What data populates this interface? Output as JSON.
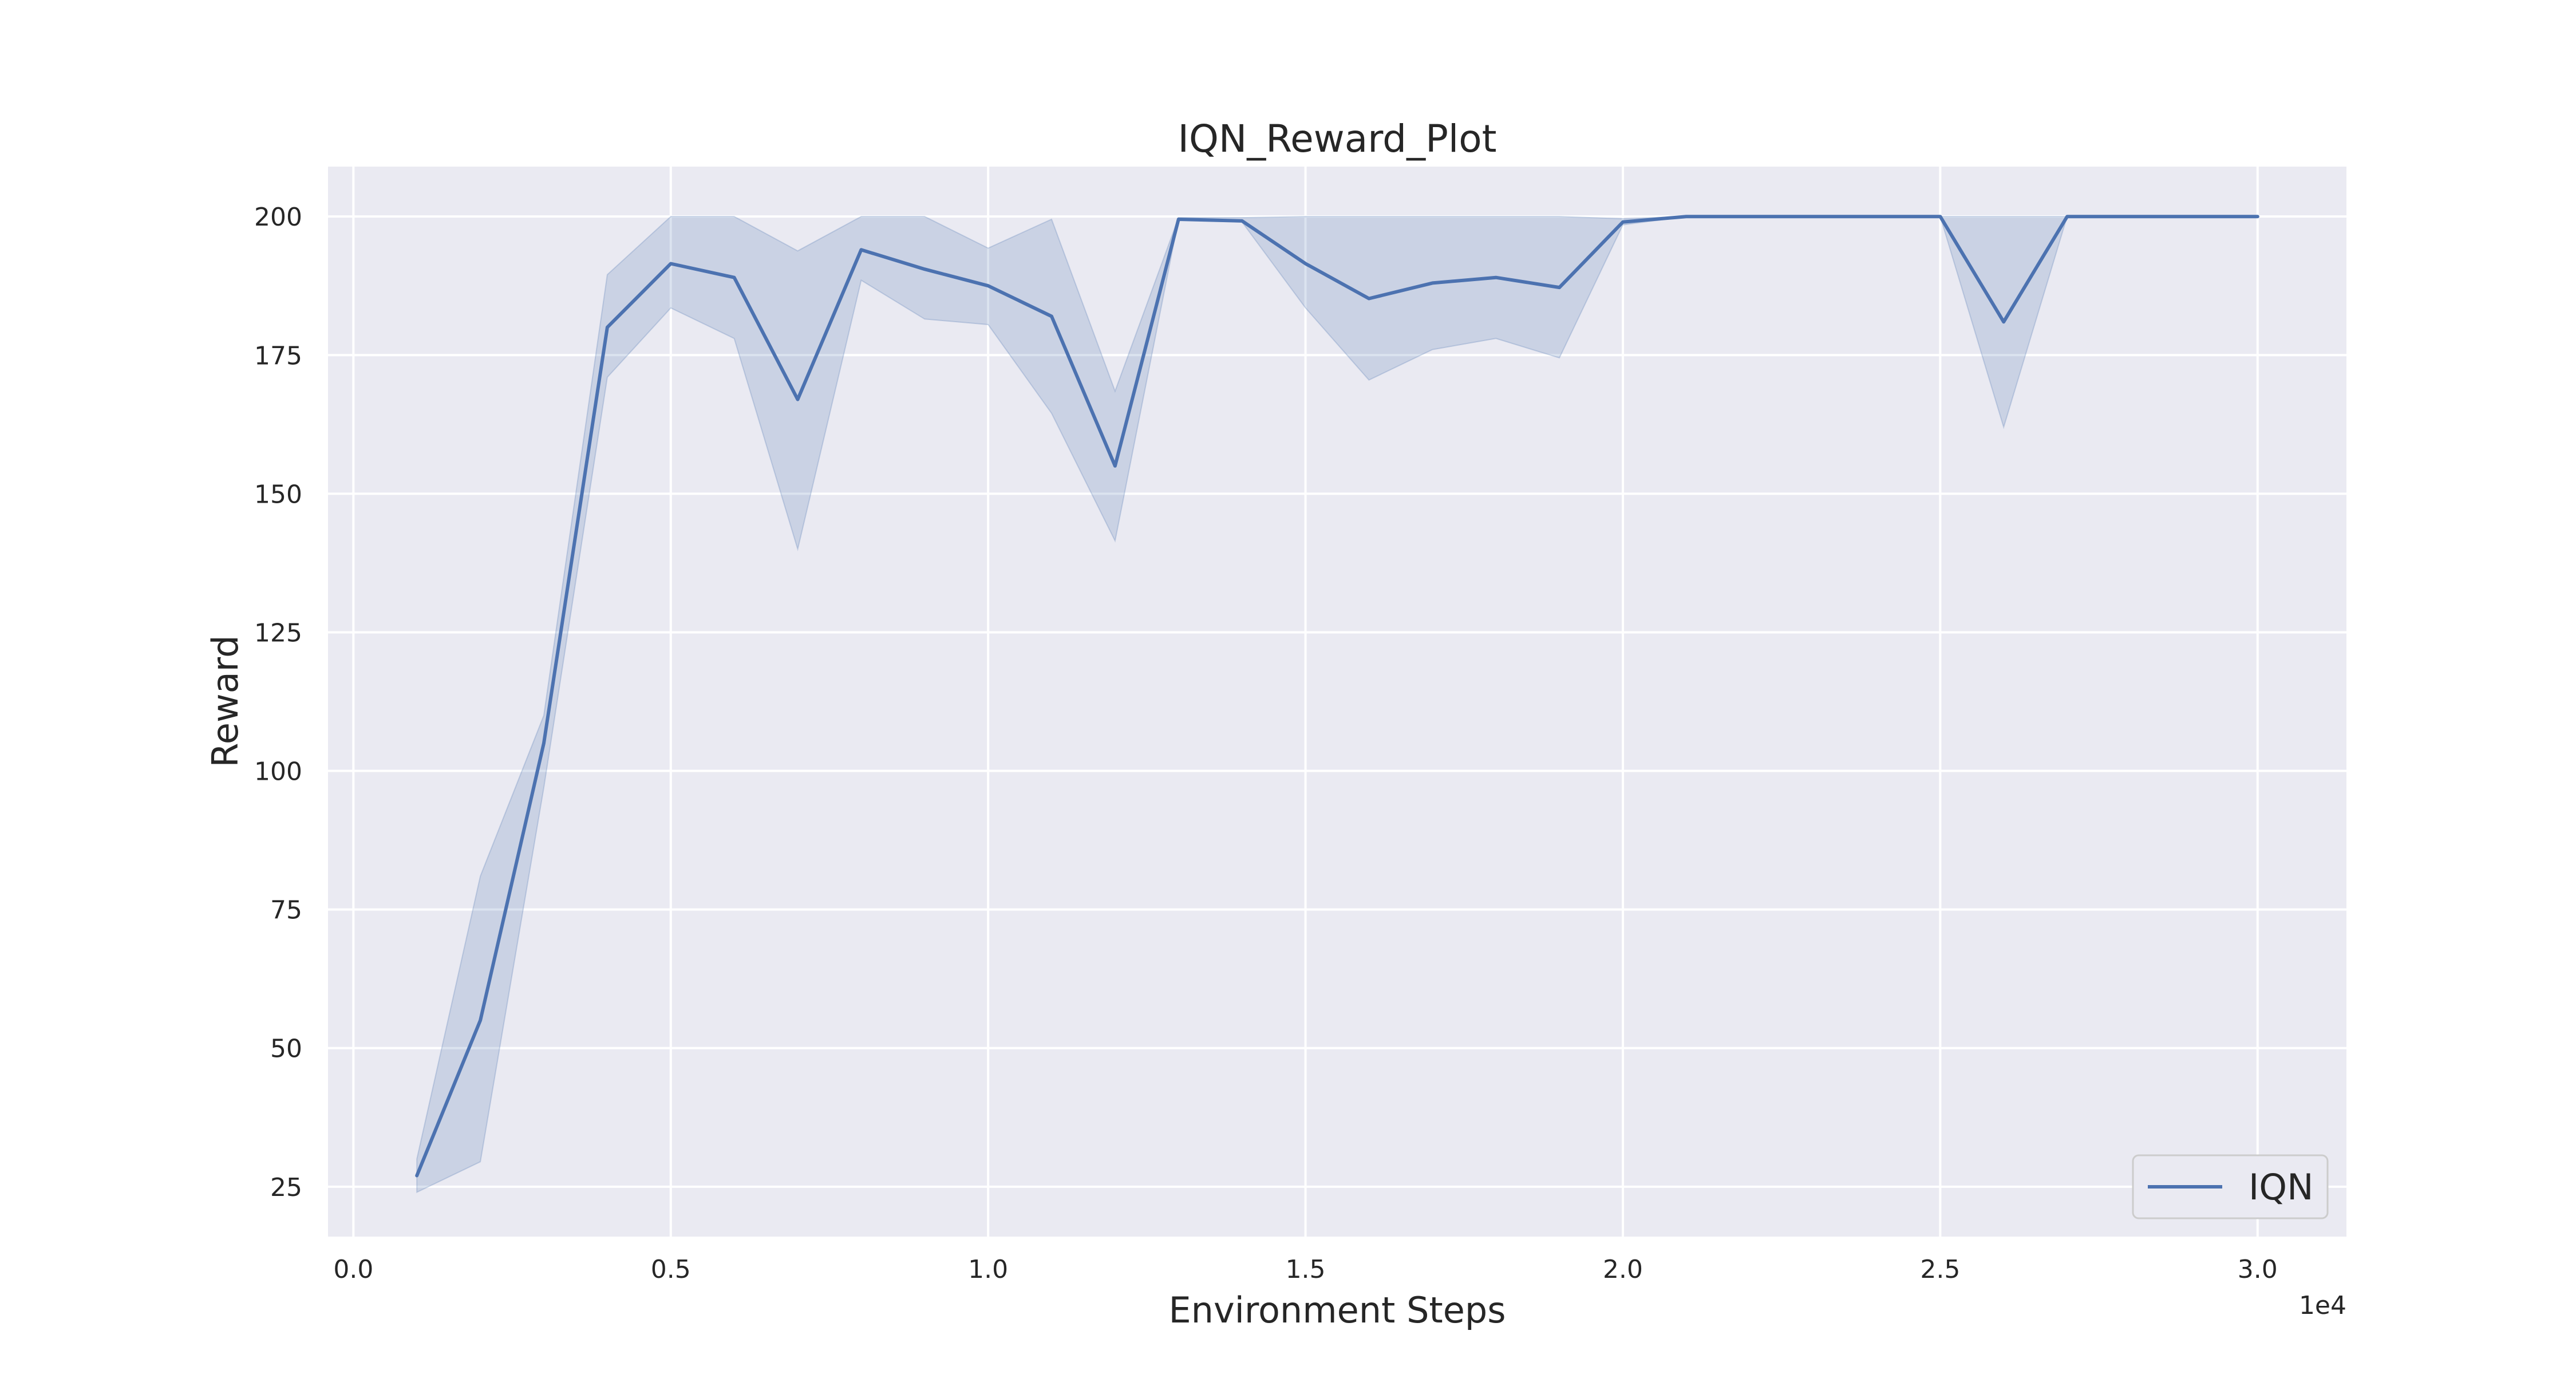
{
  "chart_data": {
    "type": "line",
    "title": "IQN_Reward_Plot",
    "xlabel": "Environment Steps",
    "ylabel": "Reward",
    "x_offset_label": "1e4",
    "xlim": [
      -400,
      31400
    ],
    "ylim": [
      16,
      209
    ],
    "x_ticks": [
      0,
      5000,
      10000,
      15000,
      20000,
      25000,
      30000
    ],
    "x_tick_labels": [
      "0.0",
      "0.5",
      "1.0",
      "1.5",
      "2.0",
      "2.5",
      "3.0"
    ],
    "y_ticks": [
      25,
      50,
      75,
      100,
      125,
      150,
      175,
      200
    ],
    "y_tick_labels": [
      "25",
      "50",
      "75",
      "100",
      "125",
      "150",
      "175",
      "200"
    ],
    "grid": true,
    "legend_position": "bottom-right",
    "colors": {
      "plot_background": "#eaeaf2",
      "grid": "#ffffff",
      "line": "#4c72b0",
      "band": "#4c72b0"
    },
    "series": [
      {
        "name": "IQN",
        "x": [
          1000,
          2000,
          3000,
          4000,
          5000,
          6000,
          7000,
          8000,
          9000,
          10000,
          11000,
          12000,
          13000,
          14000,
          15000,
          16000,
          17000,
          18000,
          19000,
          20000,
          21000,
          22000,
          23000,
          24000,
          25000,
          26000,
          27000,
          28000,
          29000,
          30000
        ],
        "y": [
          27,
          55,
          105,
          180,
          191.5,
          189,
          167,
          194,
          190.5,
          187.5,
          182,
          155,
          199.5,
          199.2,
          191.5,
          185.2,
          188,
          189,
          187.2,
          199,
          200,
          200,
          200,
          200,
          200,
          181,
          200,
          200,
          200,
          200
        ],
        "lower": [
          24,
          29.5,
          97,
          171,
          183.5,
          178,
          140,
          188.5,
          181.5,
          180.5,
          164.5,
          141.5,
          199.5,
          199,
          183.5,
          170.5,
          176,
          178,
          174.5,
          198.5,
          200,
          200,
          200,
          200,
          200,
          162,
          200,
          200,
          200,
          200
        ],
        "upper": [
          30,
          81,
          110,
          189.5,
          200,
          200,
          193.8,
          200,
          200,
          194.3,
          199.5,
          168.5,
          199.8,
          199.8,
          200,
          200,
          200,
          200,
          200,
          199.6,
          200,
          200,
          200,
          200,
          200,
          200,
          200,
          200,
          200,
          200
        ]
      }
    ]
  }
}
